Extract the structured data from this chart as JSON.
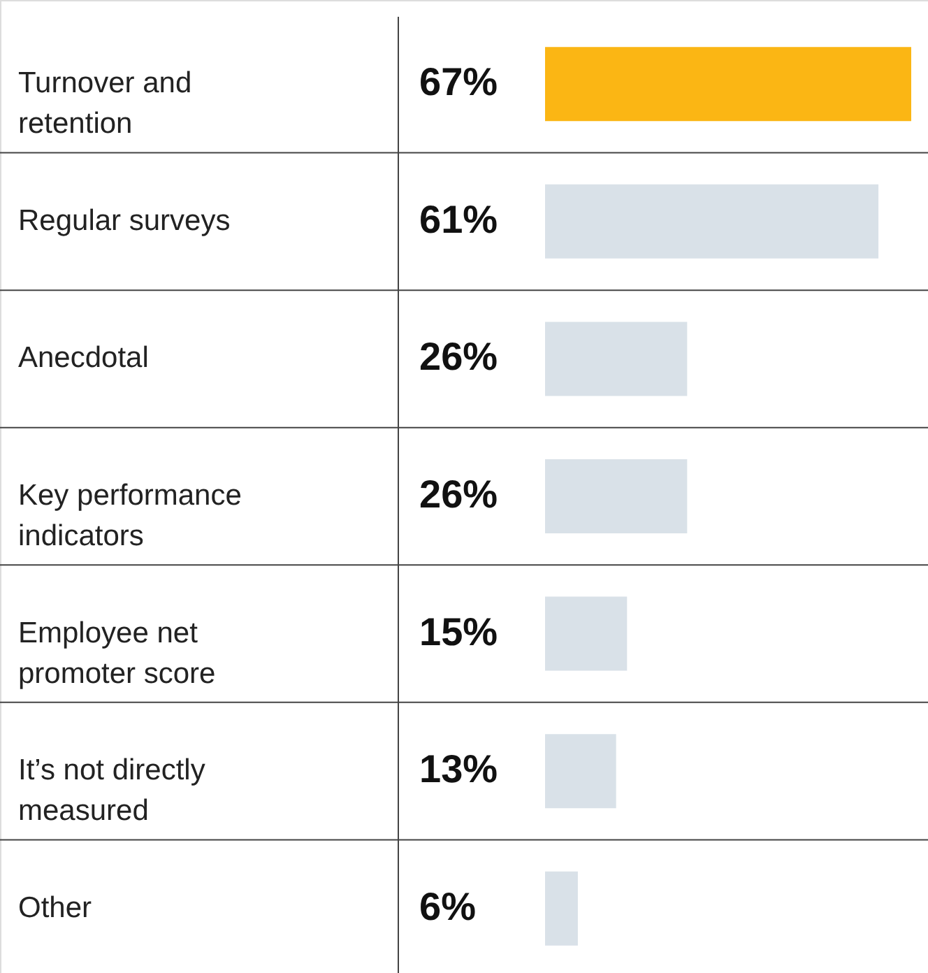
{
  "chart_data": {
    "type": "bar",
    "orientation": "horizontal",
    "categories": [
      "Turnover and retention",
      "Regular surveys",
      "Anecdotal",
      "Key performance indicators",
      "Employee net promoter score",
      "It’s not directly measured",
      "Other"
    ],
    "values": [
      67,
      61,
      26,
      26,
      15,
      13,
      6
    ],
    "value_labels": [
      "67%",
      "61%",
      "26%",
      "26%",
      "15%",
      "13%",
      "6%"
    ],
    "colors": [
      "#fbb614",
      "#d9e1e8",
      "#d9e1e8",
      "#d9e1e8",
      "#d9e1e8",
      "#d9e1e8",
      "#d9e1e8"
    ]
  }
}
